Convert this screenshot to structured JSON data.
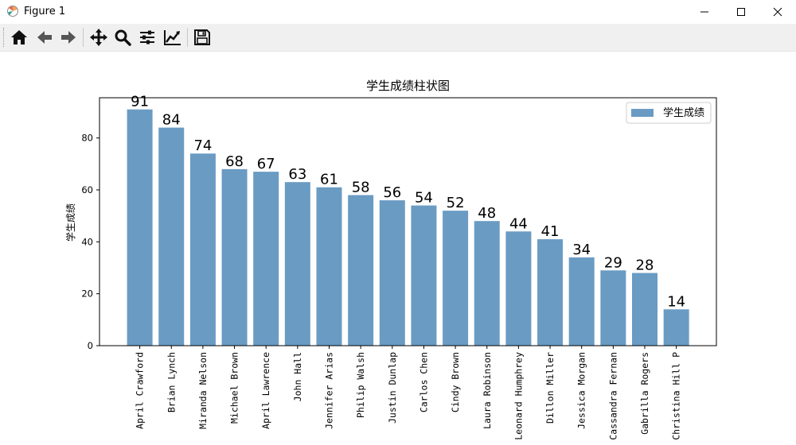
{
  "window": {
    "title": "Figure 1",
    "icons": [
      "app-icon",
      "minimize-icon",
      "maximize-icon",
      "close-icon"
    ]
  },
  "toolbar": {
    "icons": [
      "home-icon",
      "back-arrow-icon",
      "forward-arrow-icon",
      "pan-icon",
      "zoom-icon",
      "configure-subplots-icon",
      "edit-axis-icon",
      "save-icon"
    ]
  },
  "chart_data": {
    "type": "bar",
    "title": "学生成绩柱状图",
    "xlabel": "",
    "ylabel": "学生成绩",
    "categories": [
      "April Crawford",
      "Brian Lynch",
      "Miranda Nelson",
      "Michael Brown",
      "April Lawrence",
      "John Hall",
      "Jennifer Arias",
      "Philip Walsh",
      "Justin Dunlap",
      "Carlos Chen",
      "Cindy Brown",
      "Laura Robinson",
      "Leonard Humphrey",
      "Dillon Miller",
      "Jessica Morgan",
      "Cassandra Fernan",
      "Gabrilla Rogers",
      "Christina Hill P"
    ],
    "series": [
      {
        "name": "学生成绩",
        "values": [
          91,
          84,
          74,
          68,
          67,
          63,
          61,
          58,
          56,
          54,
          52,
          48,
          44,
          41,
          34,
          29,
          28,
          14
        ]
      }
    ],
    "yticks": [
      "0",
      "20",
      "40",
      "60",
      "80"
    ],
    "ylim": [
      0,
      95.5
    ],
    "legend_position": "top-right",
    "grid": false,
    "bar_color": "#6a9bc3"
  }
}
